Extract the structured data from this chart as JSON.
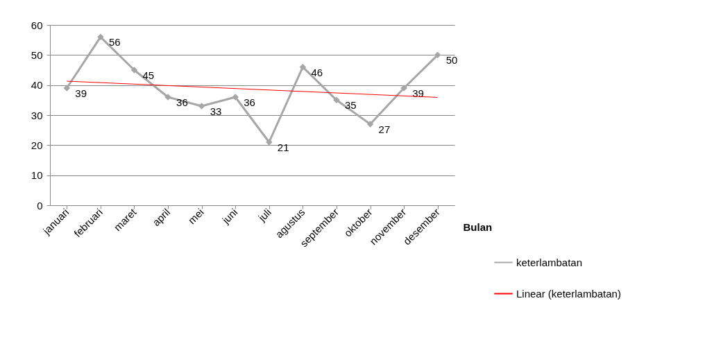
{
  "chart_data": {
    "type": "line",
    "xlabel": "Bulan",
    "categories": [
      "januari",
      "februari",
      "maret",
      "april",
      "mei",
      "juni",
      "juli",
      "agustus",
      "september",
      "oktober",
      "november",
      "desember"
    ],
    "series": [
      {
        "name": "keterlambatan",
        "color": "#a6a6a6",
        "marker": "diamond",
        "values": [
          39,
          56,
          45,
          36,
          33,
          36,
          21,
          46,
          35,
          27,
          39,
          50
        ],
        "value_labels": [
          "39",
          "56",
          "45",
          "36",
          "33",
          "36",
          "21",
          "46",
          "35",
          "27",
          "39",
          "50"
        ]
      },
      {
        "name": "Linear (keterlambatan)",
        "color": "#ff0000",
        "type": "line",
        "marker": "none",
        "x": [
          "januari",
          "desember"
        ],
        "values": [
          41.3,
          35.9
        ]
      }
    ],
    "ylim": [
      0,
      60
    ],
    "yticks": [
      0,
      10,
      20,
      30,
      40,
      50,
      60
    ],
    "grid": "y",
    "legend": "right"
  }
}
